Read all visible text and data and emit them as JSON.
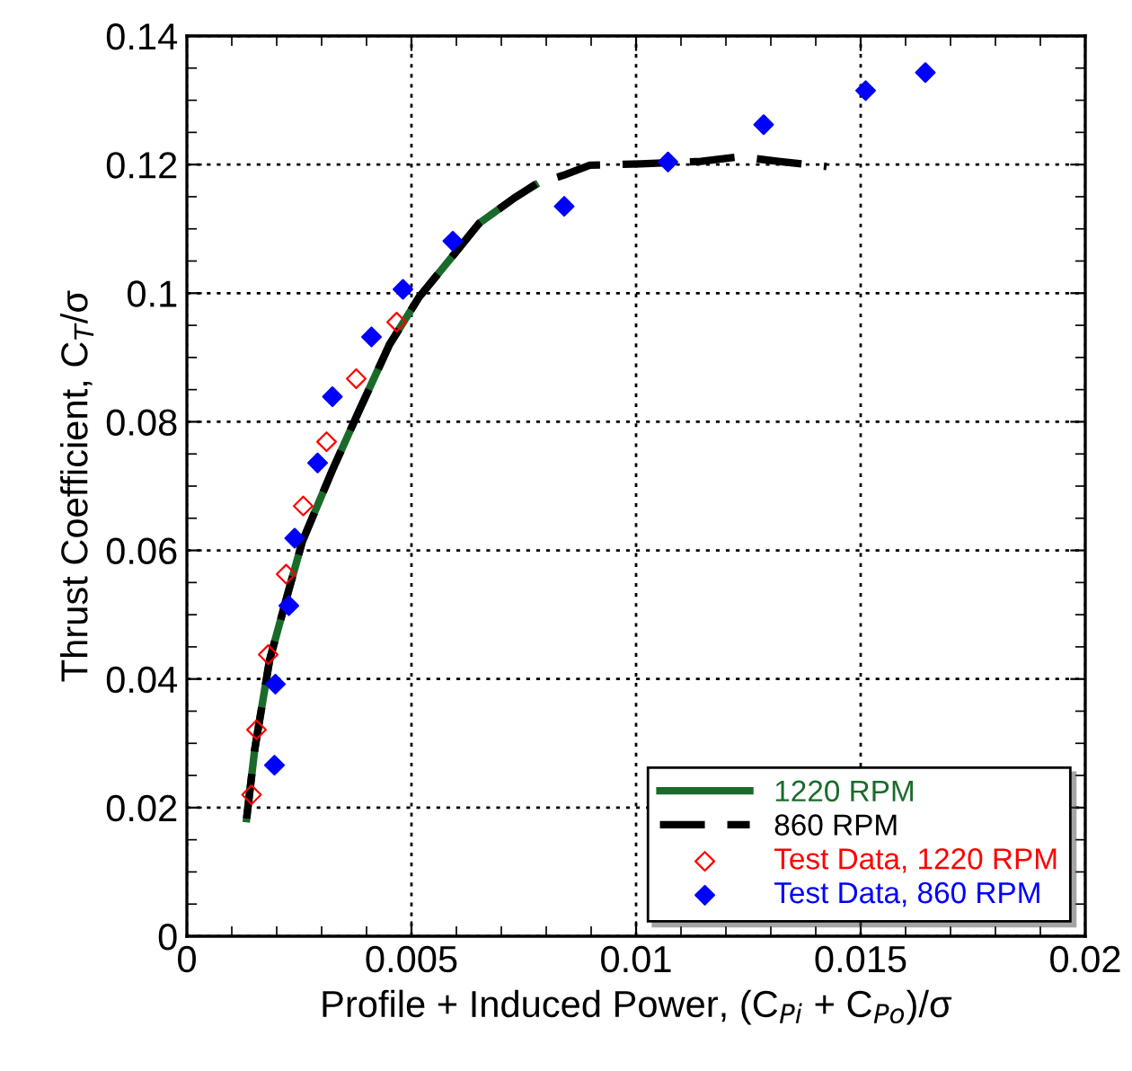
{
  "chart_data": {
    "type": "line",
    "xlabel": "Profile + Induced Power, (C$_{Pi}$ + C$_{Po}$)/σ",
    "ylabel": "Thrust Coefficient, C$_{T}$/σ",
    "xlim": [
      0,
      0.02
    ],
    "ylim": [
      0,
      0.14
    ],
    "xticks": [
      0,
      0.005,
      0.01,
      0.015,
      0.02
    ],
    "yticks": [
      0,
      0.02,
      0.04,
      0.06,
      0.08,
      0.1,
      0.12,
      0.14
    ],
    "grid": true,
    "legend": "bottom right",
    "series": [
      {
        "name": "1220 RPM",
        "color": "#1a6b2a",
        "line_style": "solid",
        "marker": "none",
        "x": [
          0.00133,
          0.00151,
          0.00184,
          0.00224,
          0.00257,
          0.00324,
          0.00384,
          0.00451,
          0.00517,
          0.00571,
          0.00651,
          0.00731,
          0.00775
        ],
        "values": [
          0.0183,
          0.029,
          0.0429,
          0.0531,
          0.0614,
          0.0725,
          0.0818,
          0.092,
          0.0994,
          0.104,
          0.1109,
          0.1149,
          0.1168
        ]
      },
      {
        "name": "860 RPM",
        "color": "#000000",
        "line_style": "dashed",
        "marker": "none",
        "x": [
          0.00133,
          0.00151,
          0.00184,
          0.00224,
          0.00257,
          0.00324,
          0.00384,
          0.00451,
          0.00517,
          0.00571,
          0.00651,
          0.00731,
          0.0078,
          0.00837,
          0.00897,
          0.0101,
          0.01144,
          0.01231,
          0.01317,
          0.01424
        ],
        "values": [
          0.0183,
          0.029,
          0.0429,
          0.0531,
          0.0614,
          0.0725,
          0.0818,
          0.092,
          0.0994,
          0.104,
          0.1109,
          0.1149,
          0.1171,
          0.1183,
          0.1199,
          0.1201,
          0.1205,
          0.1212,
          0.1205,
          0.1197
        ]
      },
      {
        "name": "Test Data, 1220 RPM",
        "type": "scatter",
        "color": "#ff0000",
        "marker": "diamond",
        "x": [
          0.00144,
          0.00155,
          0.00181,
          0.00221,
          0.00259,
          0.00311,
          0.00377,
          0.00467
        ],
        "values": [
          0.022,
          0.0321,
          0.0438,
          0.0563,
          0.0669,
          0.0769,
          0.0867,
          0.0955
        ]
      },
      {
        "name": "Test Data, 860 RPM",
        "type": "scatter",
        "color": "#0000ff",
        "marker": "diamond",
        "x": [
          0.00195,
          0.00197,
          0.00227,
          0.0024,
          0.00291,
          0.00324,
          0.00411,
          0.00481,
          0.00592,
          0.0084,
          0.01071,
          0.01284,
          0.01511,
          0.01644
        ],
        "values": [
          0.0266,
          0.0392,
          0.0514,
          0.0619,
          0.0736,
          0.0839,
          0.0932,
          0.1006,
          0.1081,
          0.1135,
          0.1204,
          0.1262,
          0.1315,
          0.1343
        ]
      }
    ]
  }
}
